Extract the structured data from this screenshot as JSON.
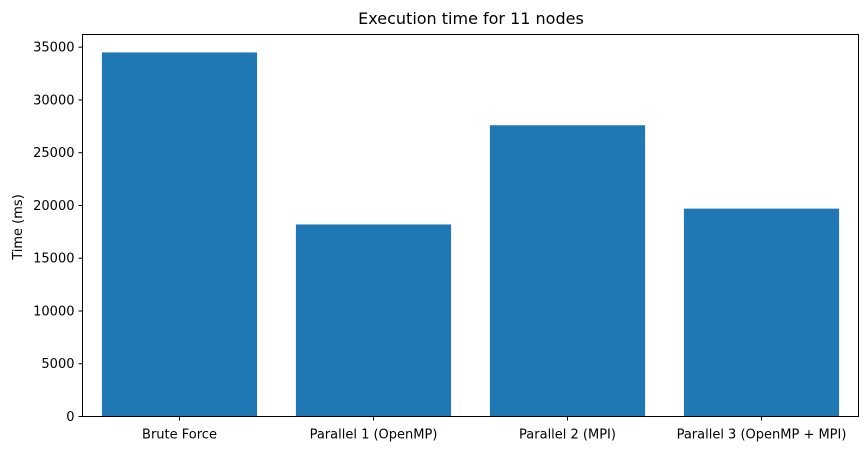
{
  "chart_data": {
    "type": "bar",
    "title": "Execution time for 11 nodes",
    "xlabel": "",
    "ylabel": "Time (ms)",
    "categories": [
      "Brute Force",
      "Parallel 1 (OpenMP)",
      "Parallel 2 (MPI)",
      "Parallel 3 (OpenMP + MPI)"
    ],
    "values": [
      34500,
      18200,
      27600,
      19700
    ],
    "ylim": [
      0,
      36200
    ],
    "yticks": [
      0,
      5000,
      10000,
      15000,
      20000,
      25000,
      30000,
      35000
    ],
    "bar_color": "#1f77b4",
    "grid": false,
    "legend": "none"
  }
}
